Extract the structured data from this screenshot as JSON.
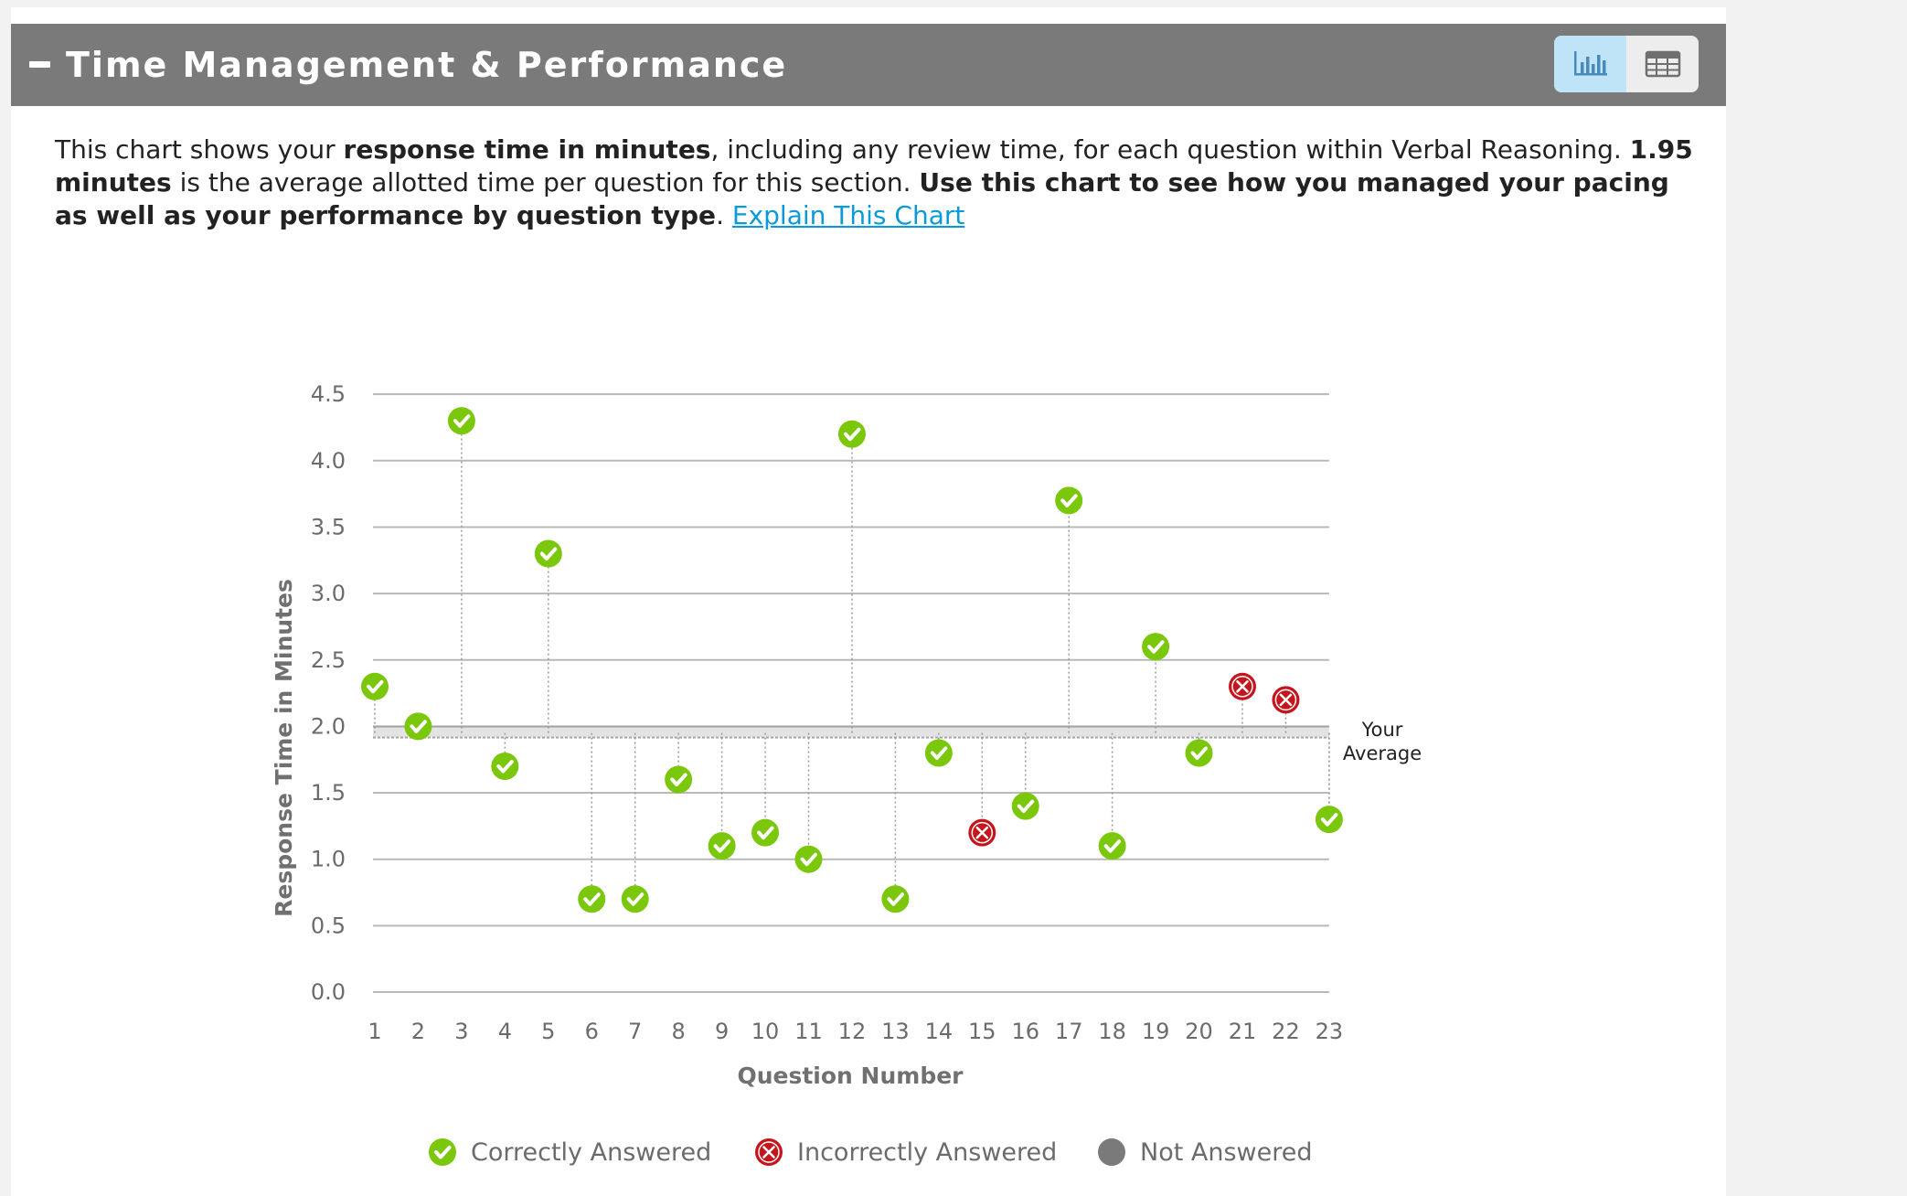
{
  "section": {
    "title": "Time Management & Performance",
    "view_toggle": {
      "chart_icon": "bar-chart-icon",
      "table_icon": "table-grid-icon",
      "active": "chart"
    }
  },
  "description": {
    "part1": "This chart shows your ",
    "bold1": "response time in minutes",
    "part2": ", including any review time, for each question within Verbal Reasoning. ",
    "bold2": "1.95 minutes",
    "part3": " is the average allotted time per question for this section. ",
    "bold3": "Use this chart to see how you managed your pacing as well as your performance by question type",
    "part4": ". ",
    "link": "Explain This Chart"
  },
  "chart_data": {
    "type": "scatter",
    "title": "",
    "xlabel": "Question Number",
    "ylabel": "Response Time in Minutes",
    "ylim": [
      0,
      4.5
    ],
    "yticks": [
      "0.0",
      "0.5",
      "1.0",
      "1.5",
      "2.0",
      "2.5",
      "3.0",
      "3.5",
      "4.0",
      "4.5"
    ],
    "x": [
      1,
      2,
      3,
      4,
      5,
      6,
      7,
      8,
      9,
      10,
      11,
      12,
      13,
      14,
      15,
      16,
      17,
      18,
      19,
      20,
      21,
      22,
      23
    ],
    "values": [
      2.3,
      2.0,
      4.3,
      1.7,
      3.3,
      0.7,
      0.7,
      1.6,
      1.1,
      1.2,
      1.0,
      4.2,
      0.7,
      1.8,
      1.2,
      1.4,
      3.7,
      1.1,
      2.6,
      1.8,
      2.3,
      2.2,
      1.3
    ],
    "status": [
      "correct",
      "correct",
      "correct",
      "correct",
      "correct",
      "correct",
      "correct",
      "correct",
      "correct",
      "correct",
      "correct",
      "correct",
      "correct",
      "correct",
      "incorrect",
      "correct",
      "correct",
      "correct",
      "correct",
      "correct",
      "incorrect",
      "incorrect",
      "correct"
    ],
    "average": 1.95,
    "average_label": [
      "Your",
      "Average"
    ],
    "grid": true,
    "legend": {
      "placement": "bottom",
      "entries": [
        {
          "key": "correct",
          "label": "Correctly Answered",
          "color": "#7ac70c"
        },
        {
          "key": "incorrect",
          "label": "Incorrectly Answered",
          "color": "#c4161c"
        },
        {
          "key": "unanswered",
          "label": "Not Answered",
          "color": "#7a7a7a"
        }
      ]
    },
    "colors": {
      "correct": "#7ac70c",
      "incorrect": "#c4161c",
      "unanswered": "#7a7a7a",
      "average_band": "#a6a6a6"
    }
  }
}
